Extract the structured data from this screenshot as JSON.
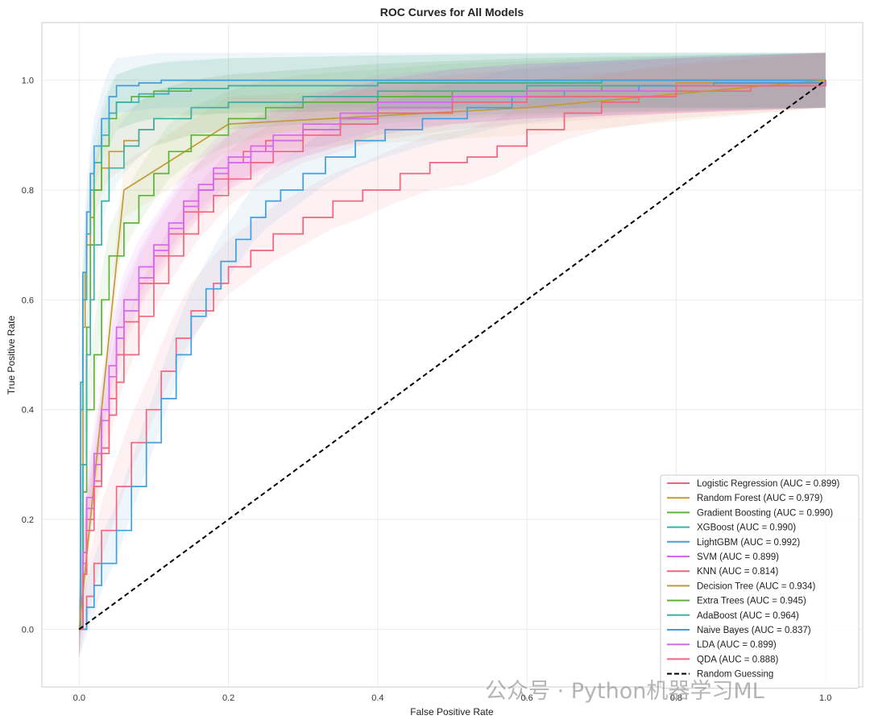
{
  "chart_data": {
    "type": "line",
    "title": "ROC Curves for All Models",
    "xlabel": "False Positive Rate",
    "ylabel": "True Positive Rate",
    "xlim": [
      -0.05,
      1.05
    ],
    "ylim": [
      -0.105,
      1.105
    ],
    "x_ticks": [
      0.0,
      0.2,
      0.4,
      0.6,
      0.8,
      1.0
    ],
    "y_ticks": [
      0.0,
      0.2,
      0.4,
      0.6,
      0.8,
      1.0
    ],
    "x_tick_labels": [
      "0.0",
      "0.2",
      "0.4",
      "0.6",
      "0.8",
      "1.0"
    ],
    "y_tick_labels": [
      "0.0",
      "0.2",
      "0.4",
      "0.6",
      "0.8",
      "1.0"
    ],
    "grid": true,
    "legend_position": "lower-right",
    "series": [
      {
        "name": "Logistic Regression (AUC = 0.899)",
        "color": "#f0667f",
        "points": [
          [
            0,
            0
          ],
          [
            0.005,
            0.1
          ],
          [
            0.01,
            0.2
          ],
          [
            0.02,
            0.27
          ],
          [
            0.03,
            0.33
          ],
          [
            0.04,
            0.42
          ],
          [
            0.05,
            0.5
          ],
          [
            0.06,
            0.56
          ],
          [
            0.08,
            0.63
          ],
          [
            0.1,
            0.68
          ],
          [
            0.12,
            0.72
          ],
          [
            0.14,
            0.76
          ],
          [
            0.16,
            0.8
          ],
          [
            0.18,
            0.82
          ],
          [
            0.2,
            0.85
          ],
          [
            0.22,
            0.87
          ],
          [
            0.25,
            0.89
          ],
          [
            0.3,
            0.91
          ],
          [
            0.35,
            0.93
          ],
          [
            0.4,
            0.95
          ],
          [
            0.5,
            0.97
          ],
          [
            0.6,
            0.98
          ],
          [
            0.8,
            0.99
          ],
          [
            1,
            1
          ]
        ]
      },
      {
        "name": "Random Forest (AUC = 0.979)",
        "color": "#c39a38",
        "points": [
          [
            0,
            0
          ],
          [
            0.002,
            0.3
          ],
          [
            0.005,
            0.55
          ],
          [
            0.008,
            0.65
          ],
          [
            0.01,
            0.7
          ],
          [
            0.015,
            0.75
          ],
          [
            0.02,
            0.8
          ],
          [
            0.03,
            0.84
          ],
          [
            0.04,
            0.87
          ],
          [
            0.06,
            0.89
          ],
          [
            0.08,
            0.91
          ],
          [
            0.1,
            0.93
          ],
          [
            0.15,
            0.95
          ],
          [
            0.2,
            0.96
          ],
          [
            0.3,
            0.97
          ],
          [
            0.4,
            0.98
          ],
          [
            0.6,
            0.99
          ],
          [
            0.8,
            0.995
          ],
          [
            1,
            1
          ]
        ]
      },
      {
        "name": "Gradient Boosting (AUC = 0.990)",
        "color": "#5cb33a",
        "points": [
          [
            0,
            0
          ],
          [
            0.005,
            0.3
          ],
          [
            0.01,
            0.55
          ],
          [
            0.015,
            0.7
          ],
          [
            0.02,
            0.8
          ],
          [
            0.03,
            0.88
          ],
          [
            0.04,
            0.93
          ],
          [
            0.05,
            0.96
          ],
          [
            0.07,
            0.97
          ],
          [
            0.1,
            0.98
          ],
          [
            0.15,
            0.985
          ],
          [
            0.2,
            0.99
          ],
          [
            0.4,
            0.995
          ],
          [
            0.7,
            1
          ],
          [
            1,
            1
          ]
        ]
      },
      {
        "name": "XGBoost (AUC = 0.990)",
        "color": "#3eb0a6",
        "points": [
          [
            0,
            0
          ],
          [
            0.002,
            0.4
          ],
          [
            0.005,
            0.6
          ],
          [
            0.01,
            0.72
          ],
          [
            0.015,
            0.8
          ],
          [
            0.02,
            0.85
          ],
          [
            0.03,
            0.9
          ],
          [
            0.04,
            0.94
          ],
          [
            0.05,
            0.96
          ],
          [
            0.08,
            0.975
          ],
          [
            0.12,
            0.985
          ],
          [
            0.2,
            0.99
          ],
          [
            0.4,
            0.995
          ],
          [
            0.7,
            1
          ],
          [
            1,
            1
          ]
        ]
      },
      {
        "name": "LightGBM (AUC = 0.992)",
        "color": "#3f9fe0",
        "points": [
          [
            0,
            0
          ],
          [
            0.002,
            0.45
          ],
          [
            0.005,
            0.65
          ],
          [
            0.01,
            0.76
          ],
          [
            0.015,
            0.83
          ],
          [
            0.02,
            0.88
          ],
          [
            0.03,
            0.93
          ],
          [
            0.04,
            0.97
          ],
          [
            0.05,
            0.99
          ],
          [
            0.08,
            0.995
          ],
          [
            0.11,
            1
          ],
          [
            1,
            1
          ]
        ]
      },
      {
        "name": "SVM (AUC = 0.899)",
        "color": "#d668ef",
        "points": [
          [
            0,
            0
          ],
          [
            0.005,
            0.12
          ],
          [
            0.01,
            0.22
          ],
          [
            0.02,
            0.3
          ],
          [
            0.03,
            0.38
          ],
          [
            0.04,
            0.46
          ],
          [
            0.05,
            0.53
          ],
          [
            0.06,
            0.58
          ],
          [
            0.08,
            0.64
          ],
          [
            0.1,
            0.69
          ],
          [
            0.12,
            0.73
          ],
          [
            0.14,
            0.77
          ],
          [
            0.16,
            0.8
          ],
          [
            0.18,
            0.83
          ],
          [
            0.2,
            0.85
          ],
          [
            0.23,
            0.87
          ],
          [
            0.26,
            0.89
          ],
          [
            0.3,
            0.91
          ],
          [
            0.35,
            0.93
          ],
          [
            0.4,
            0.95
          ],
          [
            0.5,
            0.97
          ],
          [
            0.6,
            0.98
          ],
          [
            0.8,
            0.99
          ],
          [
            1,
            1
          ]
        ]
      },
      {
        "name": "KNN (AUC = 0.814)",
        "color": "#f0667f",
        "points": [
          [
            0,
            0
          ],
          [
            0.01,
            0.06
          ],
          [
            0.02,
            0.12
          ],
          [
            0.03,
            0.18
          ],
          [
            0.05,
            0.26
          ],
          [
            0.07,
            0.34
          ],
          [
            0.09,
            0.4
          ],
          [
            0.11,
            0.47
          ],
          [
            0.13,
            0.53
          ],
          [
            0.15,
            0.58
          ],
          [
            0.18,
            0.63
          ],
          [
            0.2,
            0.66
          ],
          [
            0.23,
            0.69
          ],
          [
            0.26,
            0.72
          ],
          [
            0.3,
            0.75
          ],
          [
            0.34,
            0.78
          ],
          [
            0.38,
            0.8
          ],
          [
            0.43,
            0.83
          ],
          [
            0.47,
            0.85
          ],
          [
            0.52,
            0.86
          ],
          [
            0.56,
            0.88
          ],
          [
            0.6,
            0.91
          ],
          [
            0.65,
            0.94
          ],
          [
            0.7,
            0.96
          ],
          [
            0.75,
            0.97
          ],
          [
            0.8,
            0.98
          ],
          [
            0.9,
            0.99
          ],
          [
            1,
            1
          ]
        ]
      },
      {
        "name": "Decision Tree (AUC = 0.934)",
        "color": "#c39a38",
        "points": [
          [
            0,
            0
          ],
          [
            0.06,
            0.8
          ],
          [
            0.2,
            0.92
          ],
          [
            0.6,
            0.95
          ],
          [
            1,
            1
          ]
        ]
      },
      {
        "name": "Extra Trees (AUC = 0.945)",
        "color": "#5cb33a",
        "points": [
          [
            0,
            0
          ],
          [
            0.005,
            0.25
          ],
          [
            0.01,
            0.4
          ],
          [
            0.02,
            0.5
          ],
          [
            0.03,
            0.6
          ],
          [
            0.04,
            0.68
          ],
          [
            0.06,
            0.74
          ],
          [
            0.08,
            0.79
          ],
          [
            0.1,
            0.83
          ],
          [
            0.12,
            0.87
          ],
          [
            0.15,
            0.9
          ],
          [
            0.2,
            0.93
          ],
          [
            0.25,
            0.95
          ],
          [
            0.3,
            0.96
          ],
          [
            0.4,
            0.97
          ],
          [
            0.5,
            0.98
          ],
          [
            0.7,
            0.99
          ],
          [
            1,
            1
          ]
        ]
      },
      {
        "name": "AdaBoost (AUC = 0.964)",
        "color": "#3eb0a6",
        "points": [
          [
            0,
            0
          ],
          [
            0.005,
            0.3
          ],
          [
            0.01,
            0.5
          ],
          [
            0.015,
            0.6
          ],
          [
            0.02,
            0.7
          ],
          [
            0.03,
            0.78
          ],
          [
            0.04,
            0.84
          ],
          [
            0.06,
            0.88
          ],
          [
            0.08,
            0.91
          ],
          [
            0.1,
            0.93
          ],
          [
            0.15,
            0.95
          ],
          [
            0.2,
            0.96
          ],
          [
            0.3,
            0.97
          ],
          [
            0.4,
            0.98
          ],
          [
            0.6,
            0.99
          ],
          [
            1,
            1
          ]
        ]
      },
      {
        "name": "Naive Bayes (AUC = 0.837)",
        "color": "#3f9fe0",
        "points": [
          [
            0,
            0
          ],
          [
            0.01,
            0.04
          ],
          [
            0.02,
            0.08
          ],
          [
            0.03,
            0.12
          ],
          [
            0.05,
            0.18
          ],
          [
            0.07,
            0.26
          ],
          [
            0.09,
            0.34
          ],
          [
            0.11,
            0.42
          ],
          [
            0.13,
            0.5
          ],
          [
            0.15,
            0.57
          ],
          [
            0.17,
            0.62
          ],
          [
            0.19,
            0.67
          ],
          [
            0.21,
            0.71
          ],
          [
            0.23,
            0.75
          ],
          [
            0.25,
            0.78
          ],
          [
            0.27,
            0.8
          ],
          [
            0.3,
            0.83
          ],
          [
            0.33,
            0.86
          ],
          [
            0.37,
            0.89
          ],
          [
            0.41,
            0.91
          ],
          [
            0.46,
            0.93
          ],
          [
            0.52,
            0.95
          ],
          [
            0.58,
            0.97
          ],
          [
            0.65,
            0.98
          ],
          [
            0.75,
            0.99
          ],
          [
            0.85,
            0.995
          ],
          [
            1,
            1
          ]
        ]
      },
      {
        "name": "LDA (AUC = 0.899)",
        "color": "#d668ef",
        "points": [
          [
            0,
            0
          ],
          [
            0.005,
            0.14
          ],
          [
            0.01,
            0.24
          ],
          [
            0.02,
            0.32
          ],
          [
            0.03,
            0.4
          ],
          [
            0.04,
            0.48
          ],
          [
            0.05,
            0.55
          ],
          [
            0.06,
            0.6
          ],
          [
            0.08,
            0.66
          ],
          [
            0.1,
            0.7
          ],
          [
            0.12,
            0.74
          ],
          [
            0.14,
            0.78
          ],
          [
            0.16,
            0.81
          ],
          [
            0.18,
            0.84
          ],
          [
            0.2,
            0.86
          ],
          [
            0.23,
            0.88
          ],
          [
            0.26,
            0.9
          ],
          [
            0.3,
            0.92
          ],
          [
            0.35,
            0.94
          ],
          [
            0.4,
            0.96
          ],
          [
            0.5,
            0.97
          ],
          [
            0.6,
            0.98
          ],
          [
            0.8,
            0.99
          ],
          [
            1,
            1
          ]
        ]
      },
      {
        "name": "QDA (AUC = 0.888)",
        "color": "#f0667f",
        "points": [
          [
            0,
            0
          ],
          [
            0.005,
            0.1
          ],
          [
            0.01,
            0.18
          ],
          [
            0.02,
            0.26
          ],
          [
            0.03,
            0.32
          ],
          [
            0.04,
            0.39
          ],
          [
            0.05,
            0.45
          ],
          [
            0.06,
            0.5
          ],
          [
            0.08,
            0.57
          ],
          [
            0.1,
            0.63
          ],
          [
            0.12,
            0.68
          ],
          [
            0.14,
            0.72
          ],
          [
            0.16,
            0.76
          ],
          [
            0.18,
            0.79
          ],
          [
            0.2,
            0.82
          ],
          [
            0.23,
            0.85
          ],
          [
            0.26,
            0.87
          ],
          [
            0.3,
            0.9
          ],
          [
            0.35,
            0.92
          ],
          [
            0.4,
            0.94
          ],
          [
            0.5,
            0.96
          ],
          [
            0.6,
            0.97
          ],
          [
            0.8,
            0.99
          ],
          [
            1,
            1
          ]
        ]
      },
      {
        "name": "Random Guessing",
        "color": "#000000",
        "dashed": true,
        "points": [
          [
            0,
            0
          ],
          [
            1,
            1
          ]
        ]
      }
    ]
  },
  "watermark": "公众号 · Python机器学习ML"
}
